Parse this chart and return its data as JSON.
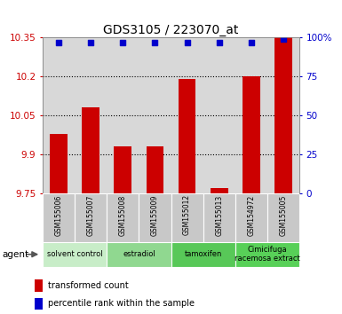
{
  "title": "GDS3105 / 223070_at",
  "samples": [
    "GSM155006",
    "GSM155007",
    "GSM155008",
    "GSM155009",
    "GSM155012",
    "GSM155013",
    "GSM154972",
    "GSM155005"
  ],
  "bar_values": [
    9.98,
    10.08,
    9.93,
    9.93,
    10.19,
    9.77,
    10.2,
    10.35
  ],
  "dot_percentiles": [
    97,
    97,
    97,
    97,
    97,
    97,
    97,
    99
  ],
  "bar_color": "#cc0000",
  "dot_color": "#0000cc",
  "ylim_left": [
    9.75,
    10.35
  ],
  "ylim_right": [
    0,
    100
  ],
  "yticks_left": [
    9.75,
    9.9,
    10.05,
    10.2,
    10.35
  ],
  "yticks_right": [
    0,
    25,
    50,
    75,
    100
  ],
  "ytick_labels_left": [
    "9.75",
    "9.9",
    "10.05",
    "10.2",
    "10.35"
  ],
  "ytick_labels_right": [
    "0",
    "25",
    "50",
    "75",
    "100%"
  ],
  "groups": [
    {
      "label": "solvent control",
      "start": 0,
      "end": 2,
      "color": "#c8edc8"
    },
    {
      "label": "estradiol",
      "start": 2,
      "end": 4,
      "color": "#90d890"
    },
    {
      "label": "tamoxifen",
      "start": 4,
      "end": 6,
      "color": "#58c858"
    },
    {
      "label": "Cimicifuga\nracemosa extract",
      "start": 6,
      "end": 8,
      "color": "#58d058"
    }
  ],
  "agent_label": "agent",
  "legend_items": [
    {
      "color": "#cc0000",
      "label": "transformed count"
    },
    {
      "color": "#0000cc",
      "label": "percentile rank within the sample"
    }
  ],
  "bar_width": 0.55,
  "background_color": "#ffffff",
  "plot_bg_color": "#d8d8d8",
  "sample_bg_color": "#c8c8c8",
  "grid_color": "#000000",
  "right_axis_color": "#0000cc",
  "left_axis_color": "#cc0000",
  "title_fontsize": 10,
  "tick_fontsize": 7.5,
  "sample_fontsize": 5.5,
  "group_fontsize": 6,
  "legend_fontsize": 7
}
